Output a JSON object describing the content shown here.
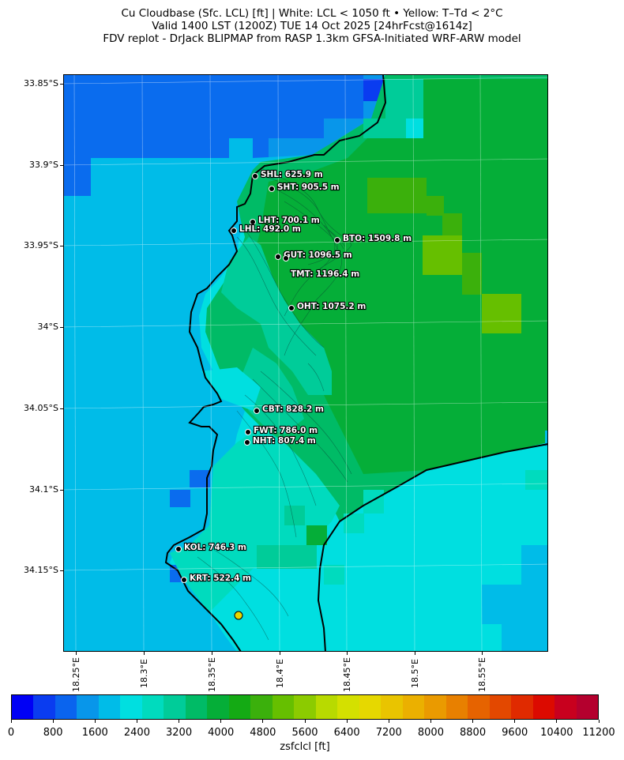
{
  "title_lines": [
    "Cu Cloudbase (Sfc. LCL) [ft]  |  White: LCL < 1050 ft • Yellow: T–Td < 2°C",
    "Valid 1400 LST (1200Z) TUE 14 Oct 2025 [24hrFcst@1614z]",
    "FDV replot - DrJack BLIPMAP from RASP 1.3km GFSA-Initiated WRF-ARW model"
  ],
  "map": {
    "lat_labels": [
      "33.85°S",
      "33.9°S",
      "33.95°S",
      "34°S",
      "34.05°S",
      "34.1°S",
      "34.15°S"
    ],
    "lon_labels": [
      "18.25°E",
      "18.3°E",
      "18.35°E",
      "18.4°E",
      "18.45°E",
      "18.5°E",
      "18.55°E"
    ],
    "stations": [
      {
        "code": "SHL",
        "label": "SHL: 625.9 m"
      },
      {
        "code": "SHT",
        "label": "SHT: 905.5 m"
      },
      {
        "code": "LHT",
        "label": "LHT: 700.1 m"
      },
      {
        "code": "LHL",
        "label": "LHL: 492.0 m"
      },
      {
        "code": "BTO",
        "label": "BTO: 1509.8 m"
      },
      {
        "code": "GUT",
        "label": "GUT: 1096.5 m"
      },
      {
        "code": "TMT",
        "label": "TMT: 1196.4 m"
      },
      {
        "code": "OHT",
        "label": "OHT: 1075.2 m"
      },
      {
        "code": "CBT",
        "label": "CBT: 828.2 m"
      },
      {
        "code": "FWT",
        "label": "FWT: 786.0 m"
      },
      {
        "code": "NHT",
        "label": "NHT: 807.4 m"
      },
      {
        "code": "KOL",
        "label": "KOL: 746.3 m"
      },
      {
        "code": "KRT",
        "label": "KRT: 522.4 m"
      }
    ],
    "yellow_marker_meaning": "T–Td < 2°C"
  },
  "colorbar": {
    "title": "zsfclcl [ft]",
    "tick_labels": [
      "0",
      "800",
      "1600",
      "2400",
      "3200",
      "4000",
      "4800",
      "5600",
      "6400",
      "7200",
      "8000",
      "8800",
      "9600",
      "10400",
      "11200"
    ],
    "colors": [
      "#0000f5",
      "#0a3cf0",
      "#0a64ee",
      "#0896ea",
      "#00bce8",
      "#00dfe0",
      "#00dbbe",
      "#00cc99",
      "#00bb66",
      "#05ae38",
      "#14aa14",
      "#3bb00c",
      "#66bf00",
      "#8ccb00",
      "#b8da00",
      "#d4e000",
      "#e6d800",
      "#e9c400",
      "#ebb000",
      "#ea9a00",
      "#e88000",
      "#e66300",
      "#e34800",
      "#e02a00",
      "#dc0a00",
      "#c8001e",
      "#b4002e"
    ]
  }
}
